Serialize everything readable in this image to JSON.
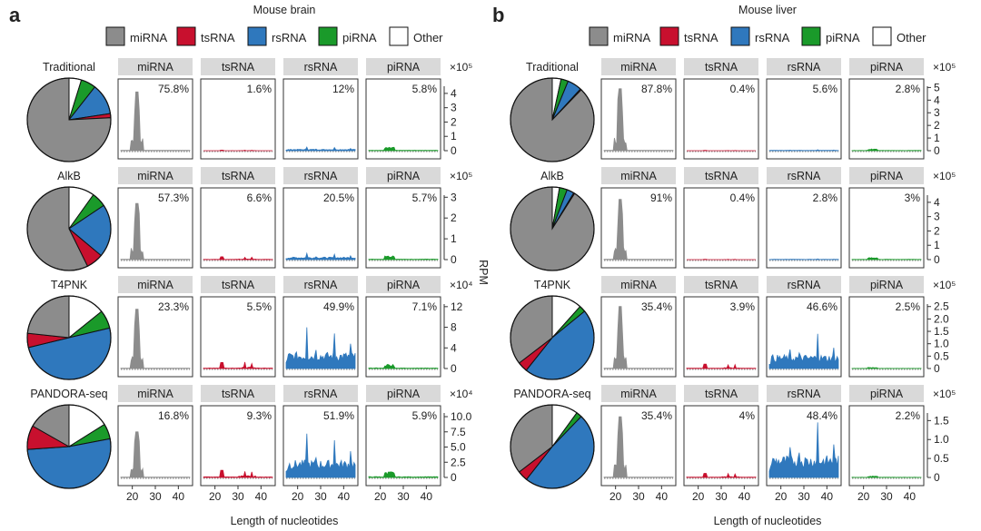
{
  "figure": {
    "panel_letters": [
      "a",
      "b"
    ],
    "legend_items": [
      {
        "label": "miRNA",
        "color": "#8c8c8c"
      },
      {
        "label": "tsRNA",
        "color": "#c8102e"
      },
      {
        "label": "rsRNA",
        "color": "#2f78bd"
      },
      {
        "label": "piRNA",
        "color": "#1a9a2a"
      },
      {
        "label": "Other",
        "color": "#ffffff"
      }
    ],
    "facet_labels": [
      "miRNA",
      "tsRNA",
      "rsRNA",
      "piRNA"
    ],
    "x_label": "Length of nucleotides",
    "y_label": "RPM",
    "x_ticks": [
      "20",
      "30",
      "40"
    ]
  },
  "chart_data": [
    {
      "type": "bar",
      "panel": "a",
      "title": "Mouse brain",
      "xlabel": "Length of nucleotides",
      "ylabel": "RPM",
      "x_range": [
        15,
        45
      ],
      "rows": [
        {
          "method": "Traditional",
          "exponent": "×10⁵",
          "y_ticks": [
            "0",
            "1",
            "2",
            "3",
            "4"
          ],
          "y_max": 4.5,
          "percentages": {
            "miRNA": "75.8%",
            "tsRNA": "1.6%",
            "rsRNA": "12%",
            "piRNA": "5.8%"
          },
          "pie": {
            "miRNA": 75.8,
            "tsRNA": 1.6,
            "rsRNA": 12,
            "piRNA": 5.8,
            "Other": 4.8
          },
          "peaks": {
            "miRNA": 4.1,
            "tsRNA": 0.04,
            "rsRNA": 0.25,
            "piRNA": 0.25
          }
        },
        {
          "method": "AlkB",
          "exponent": "×10⁵",
          "y_ticks": [
            "0",
            "1",
            "2",
            "3"
          ],
          "y_max": 3.1,
          "percentages": {
            "miRNA": "57.3%",
            "tsRNA": "6.6%",
            "rsRNA": "20.5%",
            "piRNA": "5.7%"
          },
          "pie": {
            "miRNA": 57.3,
            "tsRNA": 6.6,
            "rsRNA": 20.5,
            "piRNA": 5.7,
            "Other": 9.9
          },
          "peaks": {
            "miRNA": 2.7,
            "tsRNA": 0.15,
            "rsRNA": 0.3,
            "piRNA": 0.2
          }
        },
        {
          "method": "T4PNK",
          "exponent": "×10⁴",
          "y_ticks": [
            "0",
            "4",
            "8",
            "12"
          ],
          "y_max": 12.5,
          "percentages": {
            "miRNA": "23.3%",
            "tsRNA": "5.5%",
            "rsRNA": "49.9%",
            "piRNA": "7.1%"
          },
          "pie": {
            "miRNA": 23.3,
            "tsRNA": 5.5,
            "rsRNA": 49.9,
            "piRNA": 7.1,
            "Other": 14.2
          },
          "peaks": {
            "miRNA": 11.5,
            "tsRNA": 1.3,
            "rsRNA": 8.0,
            "piRNA": 0.9
          }
        },
        {
          "method": "PANDORA-seq",
          "exponent": "×10⁴",
          "y_ticks": [
            "0",
            "2.5",
            "5.0",
            "7.5",
            "10.0"
          ],
          "y_max": 10.6,
          "percentages": {
            "miRNA": "16.8%",
            "tsRNA": "9.3%",
            "rsRNA": "51.9%",
            "piRNA": "5.9%"
          },
          "pie": {
            "miRNA": 16.8,
            "tsRNA": 9.3,
            "rsRNA": 51.9,
            "piRNA": 5.9,
            "Other": 16.1
          },
          "peaks": {
            "miRNA": 7.5,
            "tsRNA": 1.3,
            "rsRNA": 7.2,
            "piRNA": 1.0
          }
        }
      ]
    },
    {
      "type": "bar",
      "panel": "b",
      "title": "Mouse liver",
      "xlabel": "Length of nucleotides",
      "ylabel": "RPM",
      "x_range": [
        15,
        45
      ],
      "rows": [
        {
          "method": "Traditional",
          "exponent": "×10⁵",
          "y_ticks": [
            "0",
            "1",
            "2",
            "3",
            "4",
            "5"
          ],
          "y_max": 5.1,
          "percentages": {
            "miRNA": "87.8%",
            "tsRNA": "0.4%",
            "rsRNA": "5.6%",
            "piRNA": "2.8%"
          },
          "pie": {
            "miRNA": 87.8,
            "tsRNA": 0.4,
            "rsRNA": 5.6,
            "piRNA": 2.8,
            "Other": 3.4
          },
          "peaks": {
            "miRNA": 4.9,
            "tsRNA": 0.02,
            "rsRNA": 0.08,
            "piRNA": 0.15
          }
        },
        {
          "method": "AlkB",
          "exponent": "×10⁵",
          "y_ticks": [
            "0",
            "1",
            "2",
            "3",
            "4"
          ],
          "y_max": 4.5,
          "percentages": {
            "miRNA": "91%",
            "tsRNA": "0.4%",
            "rsRNA": "2.8%",
            "piRNA": "3%"
          },
          "pie": {
            "miRNA": 91,
            "tsRNA": 0.4,
            "rsRNA": 2.8,
            "piRNA": 3,
            "Other": 2.8
          },
          "peaks": {
            "miRNA": 4.2,
            "tsRNA": 0.02,
            "rsRNA": 0.05,
            "piRNA": 0.15
          }
        },
        {
          "method": "T4PNK",
          "exponent": "×10⁵",
          "y_ticks": [
            "0",
            "0.5",
            "1.0",
            "1.5",
            "2.0",
            "2.5"
          ],
          "y_max": 2.6,
          "percentages": {
            "miRNA": "35.4%",
            "tsRNA": "3.9%",
            "rsRNA": "46.6%",
            "piRNA": "2.5%"
          },
          "pie": {
            "miRNA": 35.4,
            "tsRNA": 3.9,
            "rsRNA": 46.6,
            "piRNA": 2.5,
            "Other": 11.6
          },
          "peaks": {
            "miRNA": 2.5,
            "tsRNA": 0.2,
            "rsRNA": 1.4,
            "piRNA": 0.05
          }
        },
        {
          "method": "PANDORA-seq",
          "exponent": "×10⁵",
          "y_ticks": [
            "0",
            "0.5",
            "1.0",
            "1.5"
          ],
          "y_max": 1.7,
          "percentages": {
            "miRNA": "35.4%",
            "tsRNA": "4%",
            "rsRNA": "48.4%",
            "piRNA": "2.2%"
          },
          "pie": {
            "miRNA": 35.4,
            "tsRNA": 4,
            "rsRNA": 48.4,
            "piRNA": 2.2,
            "Other": 10
          },
          "peaks": {
            "miRNA": 1.6,
            "tsRNA": 0.12,
            "rsRNA": 1.45,
            "piRNA": 0.04
          }
        }
      ]
    }
  ]
}
